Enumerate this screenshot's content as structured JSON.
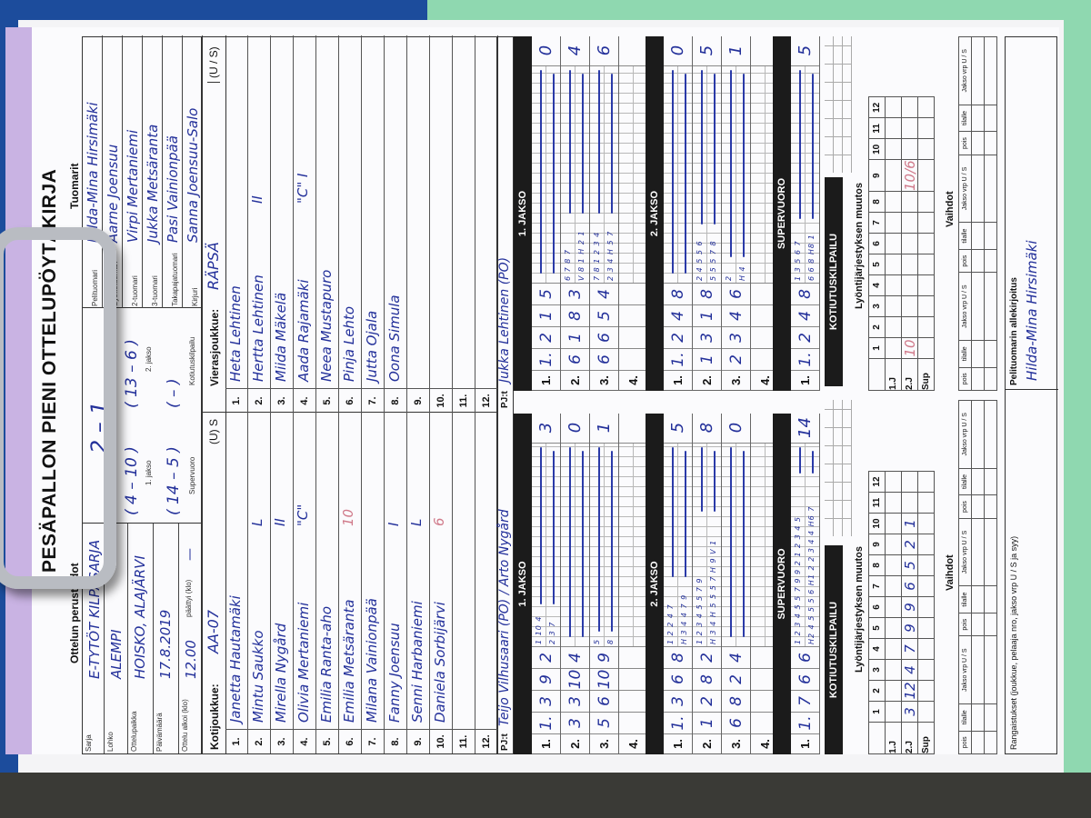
{
  "form": {
    "title": "PESÄPALLON PIENI OTTELUPÖYTÄKIRJA",
    "section_basic": "Ottelun perustiedot",
    "section_referees": "Tuomarit"
  },
  "basic_info": [
    {
      "label": "Sarja",
      "value": "E-TYTÖT KILPASARJA"
    },
    {
      "label": "Lohko",
      "value": "ALEMPI"
    },
    {
      "label": "Ottelupaikka",
      "value": "HOISKO, ALAJÄRVI"
    },
    {
      "label": "Päivämäärä",
      "value": "17.8.2019"
    },
    {
      "label": "Ottelu alkoi (klo)",
      "value": "12.00"
    }
  ],
  "ended_label": "päättyi (klo)",
  "ended_value": "—",
  "result": {
    "overall": "2 – 1",
    "jakso1": "( 4 – 10 )",
    "jakso1_label": "1. jakso",
    "jakso2": "( 13 – 6 )",
    "jakso2_label": "2. jakso",
    "supervuoro": "( 14 – 5 )",
    "supervuoro_label": "Supervuoro",
    "kotiutus": "(   –   )",
    "kotiutus_label": "Kotiutuskilpailu"
  },
  "referees": [
    {
      "role": "Pelituomari",
      "name": "Hilda-Mina Hirsimäki"
    },
    {
      "role": "Syöttötuomari",
      "name": "Aarne Joensuu"
    },
    {
      "role": "2-tuomari",
      "name": "Virpi Mertaniemi"
    },
    {
      "role": "3-tuomari",
      "name": "Jukka Metsäranta"
    },
    {
      "role": "Takapajatuomari",
      "name": "Pasi Vainionpää"
    },
    {
      "role": "Kirjuri",
      "name": "Sanna Joensuu-Salo"
    }
  ],
  "home": {
    "label": "Kotijoukkue:",
    "team": "AA-07",
    "us": "(U) S",
    "players": [
      {
        "n": "1.",
        "name": "Janetta Hautamäki",
        "mark": ""
      },
      {
        "n": "2.",
        "name": "Mintu Saukko",
        "mark": "L"
      },
      {
        "n": "3.",
        "name": "Mirella Nygård",
        "mark": "II"
      },
      {
        "n": "4.",
        "name": "Olivia Mertaniemi",
        "mark": "\"C\""
      },
      {
        "n": "5.",
        "name": "Emilia Ranta-aho",
        "mark": ""
      },
      {
        "n": "6.",
        "name": "Emilia Metsäranta",
        "mark": "10",
        "pink": true
      },
      {
        "n": "7.",
        "name": "Milana Vainionpää",
        "mark": ""
      },
      {
        "n": "8.",
        "name": "Fanny Joensuu",
        "mark": "I"
      },
      {
        "n": "9.",
        "name": "Senni Harbaniemi",
        "mark": "L"
      },
      {
        "n": "10.",
        "name": "Daniela Sorbijärvi",
        "mark": "6",
        "pink": true
      },
      {
        "n": "11.",
        "name": "",
        "mark": ""
      },
      {
        "n": "12.",
        "name": "",
        "mark": ""
      }
    ],
    "pj_label": "PJ:t",
    "pj": "Teijo Vilhusaari (PO) / Arto Nygård"
  },
  "away": {
    "label": "Vierasjoukkue:",
    "team": "RÄPSÄ",
    "us": "(U / S)",
    "players": [
      {
        "n": "1.",
        "name": "Heta Lehtinen",
        "mark": ""
      },
      {
        "n": "2.",
        "name": "Hertta Lehtinen",
        "mark": "II"
      },
      {
        "n": "3.",
        "name": "Miida Mäkelä",
        "mark": ""
      },
      {
        "n": "4.",
        "name": "Aada Rajamäki",
        "mark": "\"C\" I"
      },
      {
        "n": "5.",
        "name": "Neea Mustapuro",
        "mark": ""
      },
      {
        "n": "6.",
        "name": "Pinja Lehto",
        "mark": ""
      },
      {
        "n": "7.",
        "name": "Jutta Ojala",
        "mark": ""
      },
      {
        "n": "8.",
        "name": "Oona Simula",
        "mark": ""
      },
      {
        "n": "9.",
        "name": "",
        "mark": ""
      },
      {
        "n": "10.",
        "name": "",
        "mark": ""
      },
      {
        "n": "11.",
        "name": "",
        "mark": ""
      },
      {
        "n": "12.",
        "name": "",
        "mark": ""
      }
    ],
    "pj_label": "PJ:t",
    "pj": "Jukka Lehtinen (PO)"
  },
  "periods": [
    {
      "title": "1. JAKSO",
      "home": [
        {
          "label": "1.",
          "cells": [
            "1.",
            "3",
            "9",
            "2"
          ],
          "small": [
            "1 10 4",
            "2 3 7"
          ],
          "total": "3"
        },
        {
          "label": "2.",
          "cells": [
            "3",
            "3",
            "10",
            "4"
          ],
          "small": [
            "",
            ""
          ],
          "total": "0"
        },
        {
          "label": "3.",
          "cells": [
            "5",
            "6",
            "10",
            "9"
          ],
          "small": [
            "5",
            "8"
          ],
          "total": "1"
        },
        {
          "label": "4.",
          "cells": [
            "",
            "",
            "",
            ""
          ],
          "small": [
            "",
            ""
          ],
          "total": ""
        }
      ],
      "away": [
        {
          "label": "1.",
          "cells": [
            "1.",
            "2",
            "1",
            "5"
          ],
          "small": [
            "",
            ""
          ],
          "total": "0"
        },
        {
          "label": "2.",
          "cells": [
            "6",
            "1",
            "8",
            "3"
          ],
          "small": [
            "6 7 8 7",
            "V 8 1 H 2 1"
          ],
          "total": "4"
        },
        {
          "label": "3.",
          "cells": [
            "6",
            "6",
            "5",
            "4"
          ],
          "small": [
            "7 8 1 2 3 4",
            "2 3 4 H 5 7"
          ],
          "total": "6"
        },
        {
          "label": "4.",
          "cells": [
            "",
            "",
            "",
            ""
          ],
          "small": [
            "",
            ""
          ],
          "total": ""
        }
      ]
    },
    {
      "title": "2. JAKSO",
      "home": [
        {
          "label": "1.",
          "cells": [
            "1.",
            "3",
            "6",
            "8"
          ],
          "small": [
            "1 2 2 4 7",
            "H 3 4 4 7 9"
          ],
          "total": "5"
        },
        {
          "label": "2.",
          "cells": [
            "1",
            "2",
            "8",
            "2"
          ],
          "small": [
            "1 2 3 4 5 5 7 9",
            "H 3 4 H 5 5 5 7 H 9 V 1"
          ],
          "total": "8"
        },
        {
          "label": "3.",
          "cells": [
            "6",
            "8",
            "2",
            "4"
          ],
          "small": [
            "",
            ""
          ],
          "total": "0"
        },
        {
          "label": "4.",
          "cells": [
            "",
            "",
            "",
            ""
          ],
          "small": [
            "",
            ""
          ],
          "total": ""
        }
      ],
      "away": [
        {
          "label": "1.",
          "cells": [
            "1.",
            "2",
            "4",
            "8"
          ],
          "small": [
            "",
            ""
          ],
          "total": "0"
        },
        {
          "label": "2.",
          "cells": [
            "1",
            "3",
            "1",
            "8"
          ],
          "small": [
            "2 4 5 5 6",
            "5 5 5 7 8"
          ],
          "total": "5"
        },
        {
          "label": "3.",
          "cells": [
            "2",
            "3",
            "4",
            "6"
          ],
          "small": [
            "2",
            "H 4"
          ],
          "total": "1"
        },
        {
          "label": "4.",
          "cells": [
            "",
            "",
            "",
            ""
          ],
          "small": [
            "",
            ""
          ],
          "total": ""
        }
      ]
    },
    {
      "title": "SUPERVUORO",
      "home": [
        {
          "label": "1.",
          "cells": [
            "1.",
            "7",
            "6",
            "6"
          ],
          "small": [
            "1 2 3 4 5 5 7 9 9 2 1 2 3 4 5",
            "H2 4 5 5 5 6 H1 2 2 3 4 4 H6 7"
          ],
          "total": "14"
        }
      ],
      "away": [
        {
          "label": "1.",
          "cells": [
            "1.",
            "2",
            "4",
            "8"
          ],
          "small": [
            "1 3 5 6 7",
            "6 6 8 H8 1"
          ],
          "total": "5"
        }
      ]
    }
  ],
  "kotiutus_title": "KOTIUTUSKILPAILU",
  "lineup": {
    "title": "Lyöntijärjestyksen muutos",
    "positions": [
      "1",
      "2",
      "3",
      "4",
      "5",
      "6",
      "7",
      "8",
      "9",
      "10",
      "11",
      "12"
    ],
    "rows": [
      "1.J",
      "2.J",
      "Sup"
    ],
    "home_2j": [
      "3",
      "12",
      "4",
      "7",
      "9",
      "9",
      "6",
      "5",
      "2",
      "1",
      "",
      ""
    ],
    "away_2j": [
      "10",
      "",
      "",
      "",
      "",
      "",
      "",
      "",
      "10/6",
      "",
      "",
      ""
    ]
  },
  "vaihdot": {
    "title": "Vaihdot",
    "cols": [
      "pois",
      "tilalle",
      "Jakso vrp U / S",
      "pois",
      "tilalle",
      "Jakso vrp U / S",
      "pois",
      "tilalle",
      "Jakso vrp U / S"
    ]
  },
  "rangaistukset": "Rangaistukset (joukkue, pelaaja nro, jakso vrp U / S ja syy)",
  "signature": {
    "label": "Pelituomarin allekirjoitus",
    "name": "Hilda-Mina Hirsimäki"
  },
  "colors": {
    "ink": "#23309a",
    "clipboard": "#1c4c9c",
    "header_bar": "#1b1b1b",
    "pink_ink": "#d07a8a"
  }
}
